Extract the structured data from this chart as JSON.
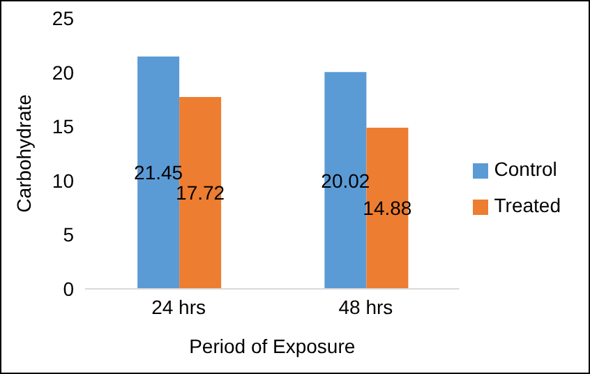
{
  "chart_data": {
    "type": "bar",
    "xlabel": "Period of Exposure",
    "ylabel": "Carbohydrate",
    "categories": [
      "24 hrs",
      "48 hrs"
    ],
    "series": [
      {
        "name": "Control",
        "color": "#5b9bd5",
        "values": [
          21.45,
          20.02
        ]
      },
      {
        "name": "Treated",
        "color": "#ed7d31",
        "values": [
          17.72,
          14.88
        ]
      }
    ],
    "ylim": [
      0,
      25
    ],
    "yticks": [
      0,
      5,
      10,
      15,
      20,
      25
    ],
    "grid": false,
    "legend": "right",
    "data_labels": true
  }
}
